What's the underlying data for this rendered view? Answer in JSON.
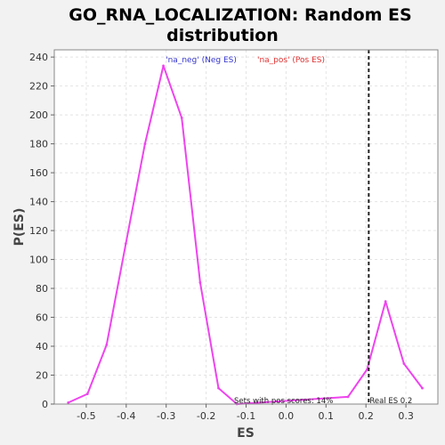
{
  "chart_data": {
    "type": "line",
    "title_line1": "GO_RNA_LOCALIZATION: Random ES",
    "title_line2": "distribution",
    "xlabel": "ES",
    "ylabel": "P(ES)",
    "xlim": [
      -0.58,
      0.38
    ],
    "ylim": [
      0,
      245
    ],
    "xticks": [
      -0.5,
      -0.4,
      -0.3,
      -0.2,
      -0.1,
      0.0,
      0.1,
      0.2,
      0.3
    ],
    "xtick_labels": [
      "-0.5",
      "-0.4",
      "-0.3",
      "-0.2",
      "-0.1",
      "0.0",
      "0.1",
      "0.2",
      "0.3"
    ],
    "yticks": [
      0,
      20,
      40,
      60,
      80,
      100,
      120,
      140,
      160,
      180,
      200,
      220,
      240
    ],
    "ytick_labels": [
      "0",
      "20",
      "40",
      "60",
      "80",
      "100",
      "120",
      "140",
      "160",
      "180",
      "200",
      "220",
      "240"
    ],
    "grid": true,
    "legend": [
      {
        "label": "'na_neg' (Neg ES)",
        "color": "#3333cc"
      },
      {
        "label": "'na_pos' (Pos ES)",
        "color": "#e03030"
      }
    ],
    "series": [
      {
        "color": "#ee44ee",
        "x": [
          -0.545,
          -0.497,
          -0.449,
          -0.401,
          -0.353,
          -0.307,
          -0.261,
          -0.215,
          -0.169,
          -0.123,
          0.155,
          0.203,
          0.249,
          0.295,
          0.341
        ],
        "y": [
          1,
          7,
          41,
          111,
          180,
          234,
          198,
          84,
          11,
          0,
          5,
          24,
          71,
          28,
          11
        ]
      }
    ],
    "real_es": {
      "x": 0.207,
      "label": "Real ES 0.2"
    },
    "pos_scores_text": "Sets with pos scores: 14%"
  }
}
